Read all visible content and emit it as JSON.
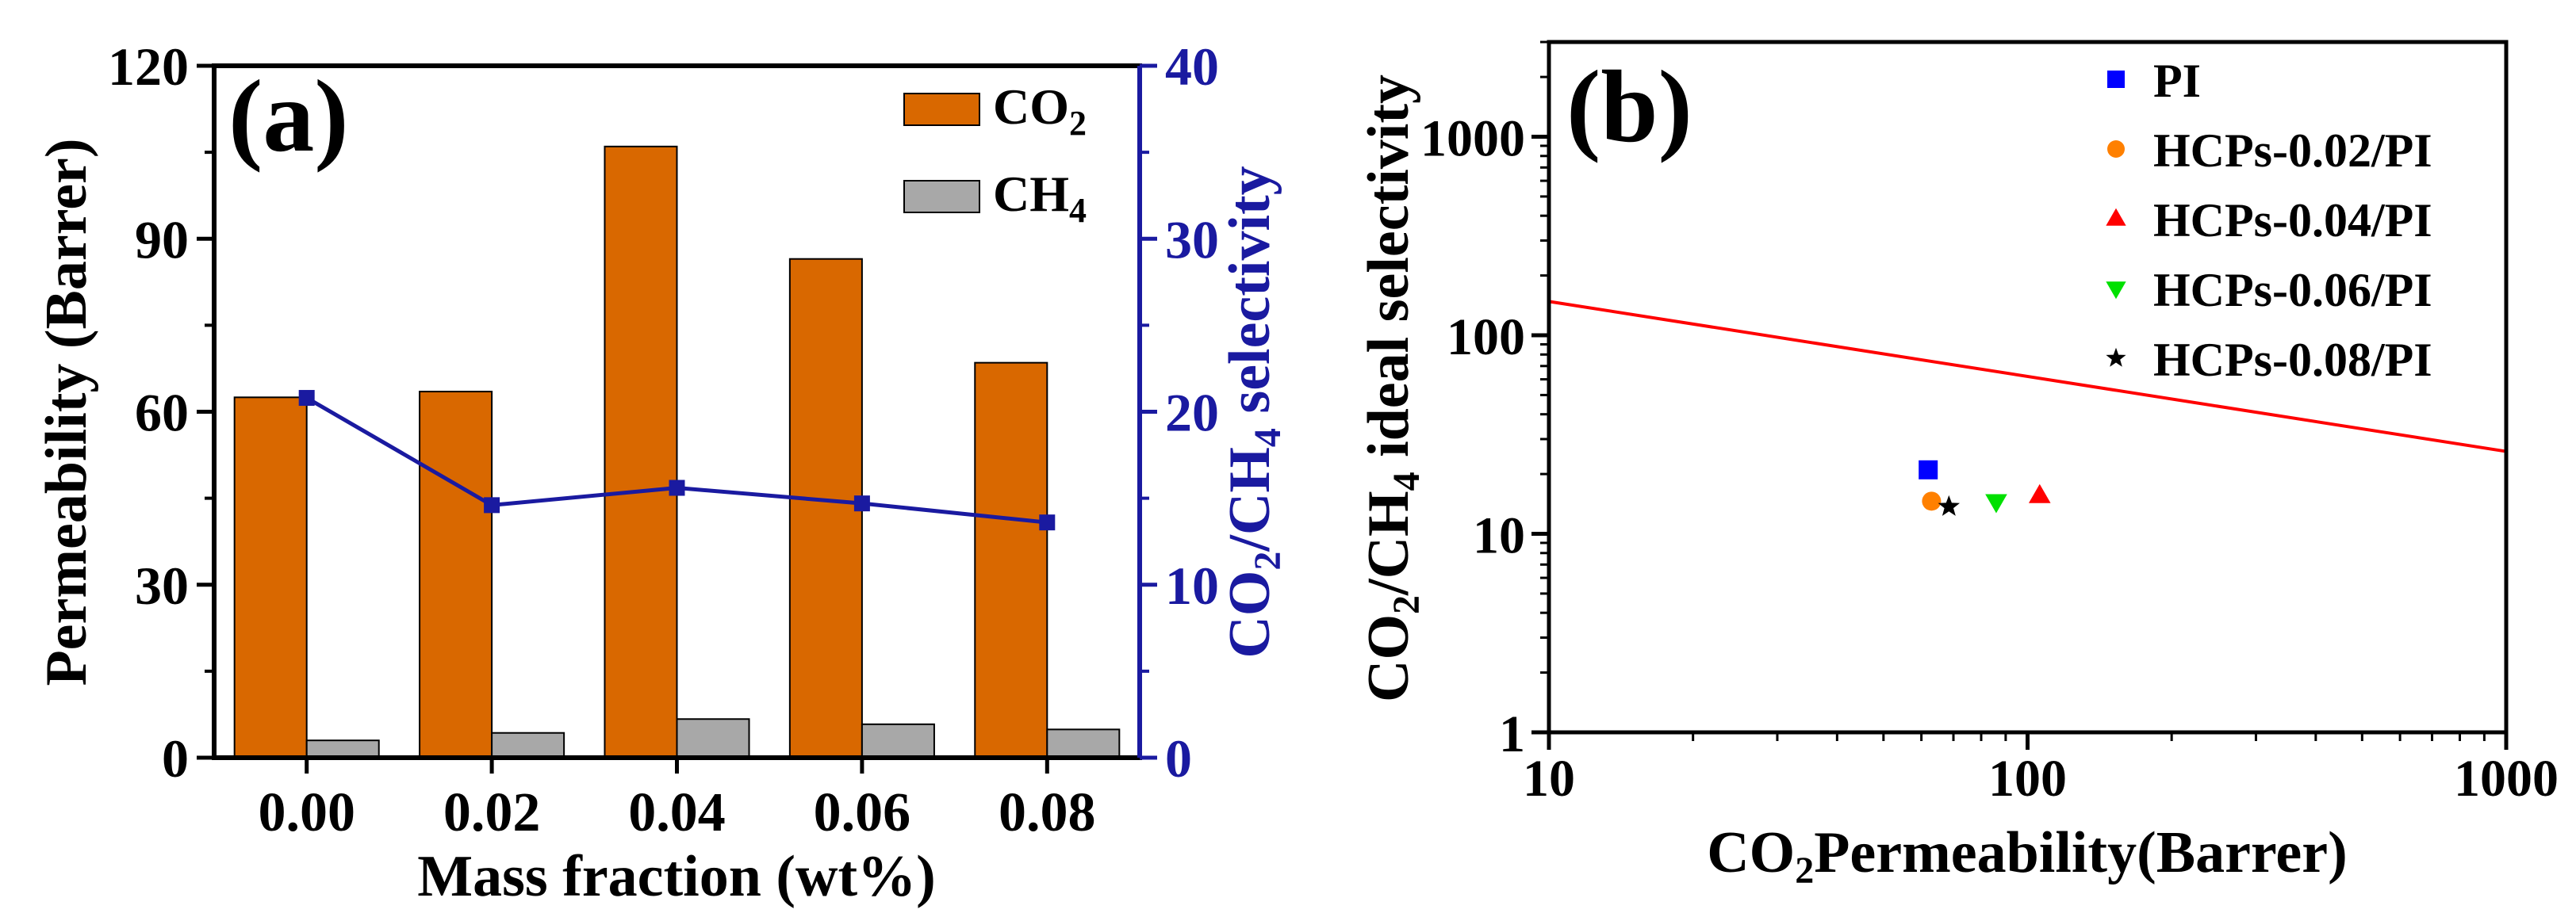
{
  "chart_data": [
    {
      "panel": "(a)",
      "type": "bar",
      "categories": [
        "0.00",
        "0.02",
        "0.04",
        "0.06",
        "0.08"
      ],
      "series": [
        {
          "name": "CO",
          "sub": "2",
          "axis": "left",
          "color": "#d96800",
          "values": [
            62.5,
            63.5,
            106,
            86.5,
            68.5
          ]
        },
        {
          "name": "CH",
          "sub": "4",
          "axis": "left",
          "color": "#a8a8a8",
          "values": [
            3,
            4.3,
            6.7,
            5.8,
            4.9
          ]
        }
      ],
      "line_series": {
        "name": "CO2/CH4 selectivity",
        "axis": "right",
        "color": "#1a1aa0",
        "values": [
          20.8,
          14.6,
          15.6,
          14.7,
          13.6
        ]
      },
      "xlabel": "Mass fraction (wt%)",
      "ylabel": "Permeability (Barrer)",
      "ylim": [
        0,
        120
      ],
      "yticks": [
        "0",
        "30",
        "60",
        "90",
        "120"
      ],
      "y2label": {
        "a": "CO",
        "b": "/CH",
        "c": " selectivity",
        "sub_a": "2",
        "sub_b": "4"
      },
      "y2lim": [
        0,
        40
      ],
      "y2ticks": [
        "0",
        "10",
        "20",
        "30",
        "40"
      ],
      "legend_position": "top-right"
    },
    {
      "panel": "(b)",
      "type": "scatter",
      "xscale": "log",
      "yscale": "log",
      "xlim": [
        10,
        1000
      ],
      "ylim": [
        1,
        3000
      ],
      "xticks": [
        "10",
        "100",
        "1000"
      ],
      "yticks": [
        "1",
        "10",
        "100",
        "1000"
      ],
      "xlabel": {
        "a": "CO",
        "sub": "2",
        "b": "Permeability(Barrer)"
      },
      "ylabel": {
        "a": "CO",
        "b": "/CH",
        "c": " ideal selectivity",
        "sub_a": "2",
        "sub_b": "4"
      },
      "upper_bound_line": {
        "color": "#ff0000",
        "x": [
          10,
          1000
        ],
        "y": [
          148,
          26
        ]
      },
      "points": [
        {
          "label": "PI",
          "marker": "square",
          "color": "#0000ff",
          "x": 62,
          "y": 21
        },
        {
          "label": "HCPs-0.02/PI",
          "marker": "circle",
          "color": "#ff8000",
          "x": 63,
          "y": 14.6
        },
        {
          "label": "HCPs-0.04/PI",
          "marker": "triangle-up",
          "color": "#ff0000",
          "x": 106,
          "y": 15.6
        },
        {
          "label": "HCPs-0.06/PI",
          "marker": "triangle-down",
          "color": "#00e000",
          "x": 86,
          "y": 14.5
        },
        {
          "label": "HCPs-0.08/PI",
          "marker": "star",
          "color": "#000000",
          "x": 68.5,
          "y": 13.7
        }
      ],
      "legend_position": "top-right"
    }
  ]
}
